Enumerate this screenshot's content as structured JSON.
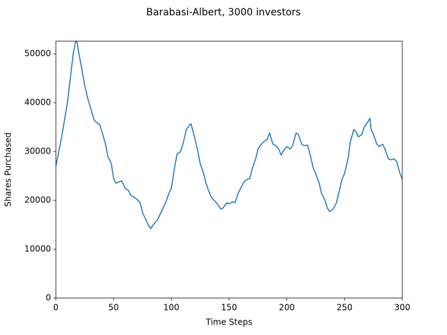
{
  "chart_data": {
    "type": "line",
    "title": "Barabasi-Albert, 3000 investors",
    "x_label": "Time Steps",
    "y_label": "Shares Purchased",
    "x": [
      0,
      5,
      10,
      13,
      15,
      17,
      18,
      20,
      22,
      25,
      28,
      30,
      33,
      35,
      38,
      40,
      43,
      45,
      48,
      50,
      52,
      55,
      57,
      60,
      63,
      65,
      70,
      73,
      75,
      78,
      80,
      82,
      85,
      88,
      90,
      93,
      95,
      98,
      100,
      103,
      105,
      108,
      110,
      113,
      115,
      117,
      120,
      123,
      125,
      128,
      130,
      133,
      135,
      138,
      140,
      143,
      145,
      148,
      150,
      153,
      155,
      158,
      160,
      163,
      165,
      168,
      170,
      173,
      175,
      178,
      180,
      183,
      185,
      188,
      190,
      193,
      195,
      198,
      200,
      203,
      205,
      208,
      210,
      213,
      215,
      218,
      220,
      223,
      225,
      228,
      230,
      233,
      235,
      237,
      240,
      243,
      245,
      248,
      250,
      253,
      255,
      258,
      260,
      262,
      265,
      267,
      270,
      272,
      273,
      275,
      278,
      280,
      283,
      285,
      288,
      290,
      293,
      295,
      298,
      300
    ],
    "series": [
      {
        "name": "Shares Purchased",
        "color": "#1f77b4",
        "values": [
          27000,
          33000,
          40000,
          46000,
          50000,
          52500,
          52800,
          50000,
          47500,
          43500,
          40500,
          39000,
          36500,
          36000,
          35500,
          34000,
          31500,
          29000,
          27500,
          24500,
          23500,
          23800,
          24000,
          22500,
          22000,
          21000,
          20300,
          19500,
          17500,
          16000,
          15000,
          14200,
          15200,
          16000,
          17000,
          18500,
          19500,
          21500,
          22500,
          27000,
          29500,
          30000,
          31500,
          34500,
          35200,
          35700,
          33000,
          30000,
          27500,
          25500,
          23500,
          21500,
          20500,
          19800,
          19200,
          18200,
          18500,
          19500,
          19300,
          19700,
          19500,
          21500,
          22500,
          23800,
          24200,
          24500,
          26500,
          28500,
          30500,
          31500,
          32000,
          32500,
          33800,
          31500,
          31300,
          30500,
          29300,
          30500,
          31000,
          30500,
          31200,
          33800,
          33500,
          31500,
          31200,
          31300,
          29500,
          26500,
          25500,
          23500,
          21500,
          20000,
          18500,
          17700,
          18200,
          19500,
          21500,
          24500,
          25500,
          28500,
          32000,
          34500,
          34000,
          33000,
          33500,
          35000,
          36000,
          36800,
          34500,
          33500,
          31500,
          31000,
          31500,
          30500,
          28500,
          28300,
          28500,
          28000,
          25500,
          24300
        ]
      }
    ],
    "xlim": [
      0,
      300
    ],
    "xticks": [
      0,
      50,
      100,
      150,
      200,
      250,
      300
    ],
    "ylim": [
      0,
      52600
    ],
    "yticks": [
      0,
      10000,
      20000,
      30000,
      40000,
      50000
    ],
    "grid": false
  }
}
